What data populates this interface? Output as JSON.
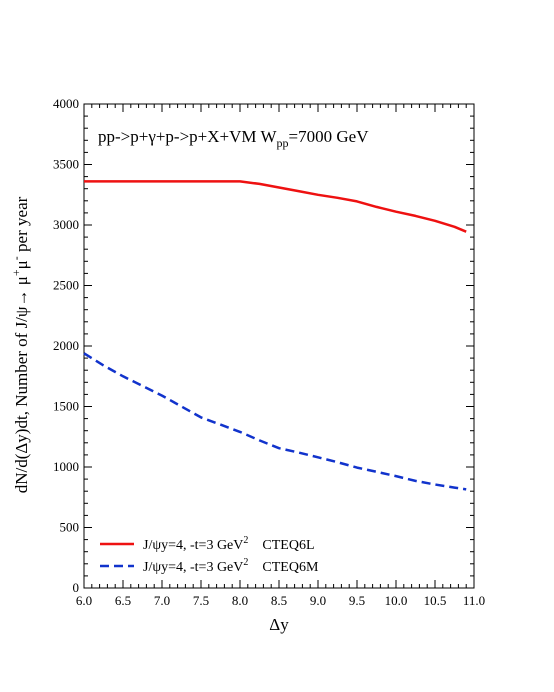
{
  "chart_data": {
    "type": "line",
    "title": "",
    "annotation": {
      "prefix": "pp->p+γ+p->p+X+VM W",
      "sub": "pp",
      "suffix": "=7000 GeV"
    },
    "xlabel": "Δy",
    "ylabel": {
      "prefix": "dN/d(Δy)dt, Number of J/ψ→ μ",
      "sup1": "+",
      "mid": "μ",
      "sup2": "-",
      "suffix": " per year"
    },
    "xlim": [
      6.0,
      11.0
    ],
    "ylim": [
      0,
      4000
    ],
    "xticks": [
      "6.0",
      "6.5",
      "7.0",
      "7.5",
      "8.0",
      "8.5",
      "9.0",
      "9.5",
      "10.0",
      "10.5",
      "11.0"
    ],
    "yticks": [
      "0",
      "500",
      "1000",
      "1500",
      "2000",
      "2500",
      "3000",
      "3500",
      "4000"
    ],
    "grid": false,
    "legend_position": "bottom-left",
    "series": [
      {
        "legend": {
          "prefix": "J/ψy=4, -t=3 GeV",
          "sup": "2",
          "suffix": "CTEQ6L"
        },
        "color": "#ee1111",
        "dash": "solid",
        "x": [
          6.0,
          6.5,
          7.0,
          7.5,
          8.0,
          8.25,
          8.5,
          8.75,
          9.0,
          9.25,
          9.5,
          9.75,
          10.0,
          10.25,
          10.5,
          10.75,
          10.9
        ],
        "y": [
          3360,
          3360,
          3360,
          3360,
          3360,
          3340,
          3310,
          3280,
          3250,
          3225,
          3195,
          3150,
          3110,
          3075,
          3035,
          2985,
          2945
        ]
      },
      {
        "legend": {
          "prefix": "J/ψy=4, -t=3 GeV",
          "sup": "2",
          "suffix": "CTEQ6M"
        },
        "color": "#1133cc",
        "dash": "dashed",
        "x": [
          6.0,
          6.25,
          6.5,
          6.75,
          7.0,
          7.25,
          7.5,
          7.75,
          8.0,
          8.25,
          8.5,
          8.75,
          9.0,
          9.25,
          9.5,
          9.75,
          10.0,
          10.25,
          10.5,
          10.75,
          10.9
        ],
        "y": [
          1940,
          1840,
          1750,
          1670,
          1590,
          1500,
          1410,
          1350,
          1290,
          1220,
          1155,
          1120,
          1080,
          1040,
          995,
          960,
          925,
          885,
          855,
          830,
          815
        ]
      }
    ]
  }
}
